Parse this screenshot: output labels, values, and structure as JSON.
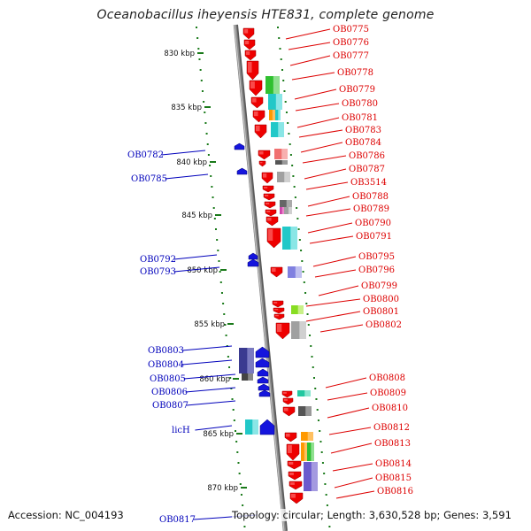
{
  "title": "Oceanobacillus iheyensis HTE831, complete genome",
  "footer": {
    "accession": "Accession: NC_004193",
    "topology": "Topology: circular; Length: 3,630,528 bp; Genes: 3,591"
  },
  "colors": {
    "forward_label": "#dd0000",
    "reverse_label": "#0000bb",
    "forward_gene": "#ee0000",
    "reverse_gene": "#1515dd",
    "axis_line": "#8a8a8a",
    "tick": "#1a7a1a"
  },
  "kbp_labels": [
    "830 kbp",
    "835 kbp",
    "840 kbp",
    "845 kbp",
    "850 kbp",
    "855 kbp",
    "860 kbp",
    "865 kbp",
    "870 kbp"
  ],
  "forward_labels": [
    "OB0775",
    "OB0776",
    "OB0777",
    "OB0778",
    "OB0779",
    "OB0780",
    "OB0781",
    "OB0783",
    "OB0784",
    "OB0786",
    "OB0787",
    "OB3514",
    "OB0788",
    "OB0789",
    "OB0790",
    "OB0791",
    "OB0795",
    "OB0796",
    "OB0799",
    "OB0800",
    "OB0801",
    "OB0802",
    "OB0808",
    "OB0809",
    "OB0810",
    "OB0812",
    "OB0813",
    "OB0814",
    "OB0815",
    "OB0816"
  ],
  "reverse_labels": [
    "OB0782",
    "OB0785",
    "OB0792",
    "OB0793",
    "OB0803",
    "OB0804",
    "OB0805",
    "OB0806",
    "OB0807",
    "licH",
    "OB0817"
  ]
}
